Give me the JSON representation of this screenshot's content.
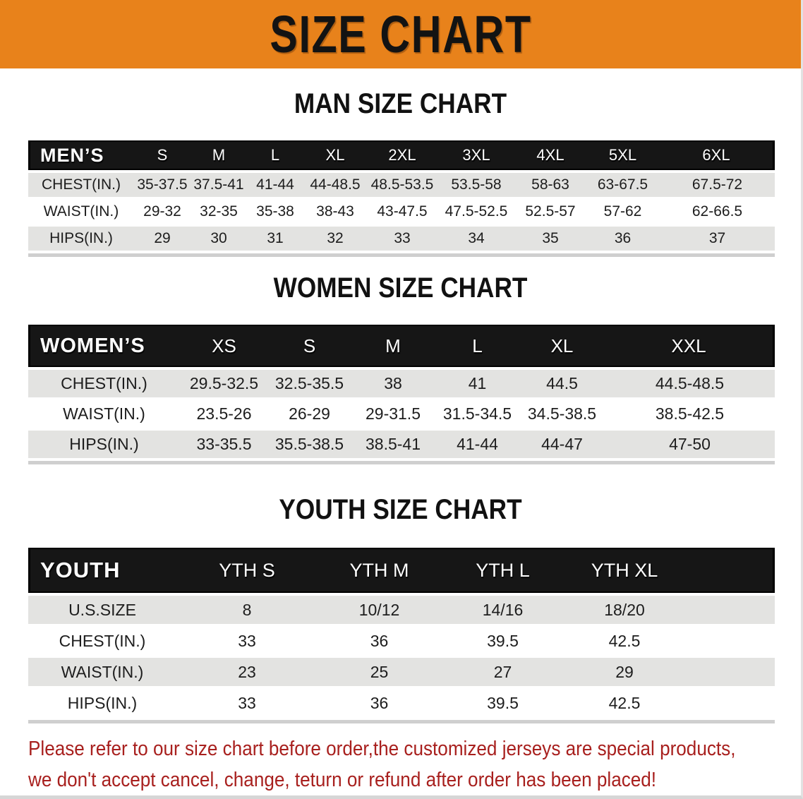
{
  "banner": {
    "title": "SIZE CHART"
  },
  "sections": {
    "men": {
      "heading": "MAN SIZE CHART",
      "table": {
        "header": [
          "MEN’S",
          "S",
          "M",
          "L",
          "XL",
          "2XL",
          "3XL",
          "4XL",
          "5XL",
          "6XL"
        ],
        "rows": [
          [
            "CHEST(IN.)",
            "35-37.5",
            "37.5-41",
            "41-44",
            "44-48.5",
            "48.5-53.5",
            "53.5-58",
            "58-63",
            "63-67.5",
            "67.5-72"
          ],
          [
            "WAIST(IN.)",
            "29-32",
            "32-35",
            "35-38",
            "38-43",
            "43-47.5",
            "47.5-52.5",
            "52.5-57",
            "57-62",
            "62-66.5"
          ],
          [
            "HIPS(IN.)",
            "29",
            "30",
            "31",
            "32",
            "33",
            "34",
            "35",
            "36",
            "37"
          ]
        ]
      }
    },
    "women": {
      "heading": "WOMEN SIZE CHART",
      "table": {
        "header": [
          "WOMEN’S",
          "XS",
          "S",
          "M",
          "L",
          "XL",
          "XXL"
        ],
        "rows": [
          [
            "CHEST(IN.)",
            "29.5-32.5",
            "32.5-35.5",
            "38",
            "41",
            "44.5",
            "44.5-48.5"
          ],
          [
            "WAIST(IN.)",
            "23.5-26",
            "26-29",
            "29-31.5",
            "31.5-34.5",
            "34.5-38.5",
            "38.5-42.5"
          ],
          [
            "HIPS(IN.)",
            "33-35.5",
            "35.5-38.5",
            "38.5-41",
            "41-44",
            "44-47",
            "47-50"
          ]
        ]
      }
    },
    "youth": {
      "heading": "YOUTH SIZE CHART",
      "table": {
        "header": [
          "YOUTH",
          "YTH S",
          "YTH M",
          "YTH L",
          "YTH XL"
        ],
        "rows": [
          [
            "U.S.SIZE",
            "8",
            "10/12",
            "14/16",
            "18/20"
          ],
          [
            "CHEST(IN.)",
            "33",
            "36",
            "39.5",
            "42.5"
          ],
          [
            "WAIST(IN.)",
            "23",
            "25",
            "27",
            "29"
          ],
          [
            "HIPS(IN.)",
            "33",
            "36",
            "39.5",
            "42.5"
          ]
        ]
      }
    }
  },
  "disclaimer": {
    "line1": "Please refer to our size chart before order,the customized jerseys are special products,",
    "line2": "we don't accept cancel, change, teturn or refund after order has been placed!"
  },
  "colors": {
    "banner_bg": "#E8821B",
    "header_bg": "#161616",
    "header_text": "#FFFFFF",
    "stripe_gray": "#E3E3E1",
    "disclaimer_red": "#A8201E",
    "edge_gray": "#CFCFCF",
    "heading_text": "#111111"
  }
}
